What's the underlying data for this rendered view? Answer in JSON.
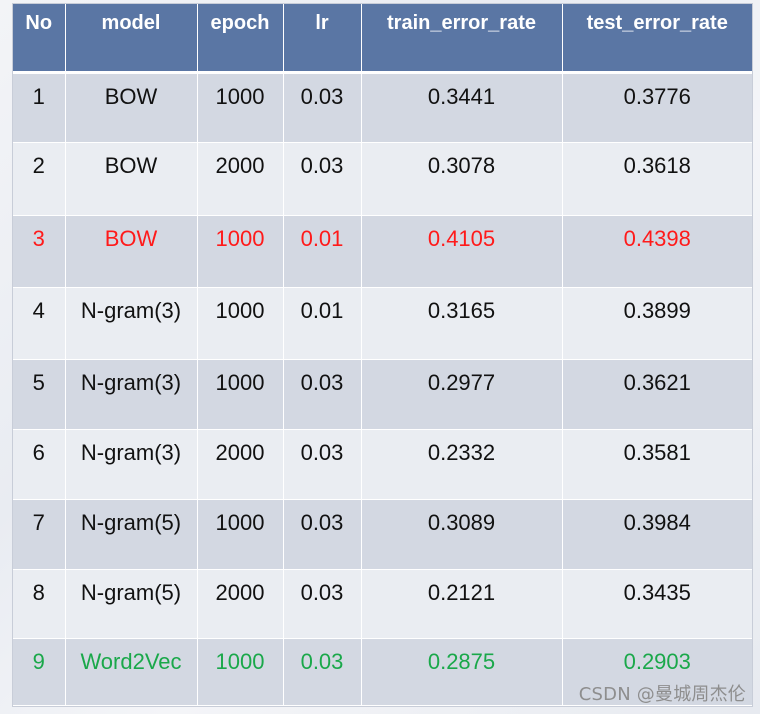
{
  "table": {
    "headers": [
      "No",
      "model",
      "epoch",
      "lr",
      "train_error_rate",
      "test_error_rate"
    ],
    "rows": [
      {
        "no": "1",
        "model": "BOW",
        "epoch": "1000",
        "lr": "0.03",
        "train": "0.3441",
        "test": "0.3776",
        "color": "#111111"
      },
      {
        "no": "2",
        "model": "BOW",
        "epoch": "2000",
        "lr": "0.03",
        "train": "0.3078",
        "test": "0.3618",
        "color": "#111111"
      },
      {
        "no": "3",
        "model": "BOW",
        "epoch": "1000",
        "lr": "0.01",
        "train": "0.4105",
        "test": "0.4398",
        "color": "#ff1a1a"
      },
      {
        "no": "4",
        "model": "N-gram(3)",
        "epoch": "1000",
        "lr": "0.01",
        "train": "0.3165",
        "test": "0.3899",
        "color": "#111111"
      },
      {
        "no": "5",
        "model": "N-gram(3)",
        "epoch": "1000",
        "lr": "0.03",
        "train": "0.2977",
        "test": "0.3621",
        "color": "#111111"
      },
      {
        "no": "6",
        "model": "N-gram(3)",
        "epoch": "2000",
        "lr": "0.03",
        "train": "0.2332",
        "test": "0.3581",
        "color": "#111111"
      },
      {
        "no": "7",
        "model": "N-gram(5)",
        "epoch": "1000",
        "lr": "0.03",
        "train": "0.3089",
        "test": "0.3984",
        "color": "#111111"
      },
      {
        "no": "8",
        "model": "N-gram(5)",
        "epoch": "2000",
        "lr": "0.03",
        "train": "0.2121",
        "test": "0.3435",
        "color": "#111111"
      },
      {
        "no": "9",
        "model": "Word2Vec",
        "epoch": "1000",
        "lr": "0.03",
        "train": "0.2875",
        "test": "0.2903",
        "color": "#1aa84a"
      }
    ]
  },
  "colors": {
    "header_bg": "#5a76a4",
    "row_odd_bg": "#d3d8e2",
    "row_even_bg": "#eaedf2",
    "highlight_red": "#ff1a1a",
    "highlight_green": "#1aa84a"
  },
  "watermark": "CSDN @曼城周杰伦"
}
